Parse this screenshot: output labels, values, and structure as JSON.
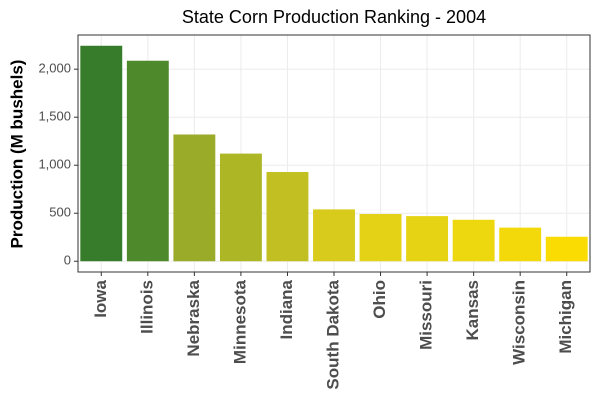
{
  "chart_data": {
    "type": "bar",
    "title": "State Corn Production Ranking - 2004",
    "y_label": "Production (M bushels)",
    "categories": [
      "Iowa",
      "Illinois",
      "Nebraska",
      "Minnesota",
      "Indiana",
      "South Dakota",
      "Ohio",
      "Missouri",
      "Kansas",
      "Wisconsin",
      "Michigan"
    ],
    "values": [
      2244,
      2088,
      1320,
      1121,
      929,
      540,
      492,
      470,
      432,
      350,
      255
    ],
    "colors": [
      "#367c2b",
      "#4e8a2c",
      "#9aab2a",
      "#adb625",
      "#c2bf22",
      "#d9cb1c",
      "#e4d216",
      "#e6d313",
      "#edd70f",
      "#f3d909",
      "#fbdc02"
    ],
    "ylim": [
      -112,
      2356
    ],
    "yticks": [
      0,
      500,
      {
        "value": 1000,
        "label": "1,000"
      },
      {
        "value": 1500,
        "label": "1,500"
      },
      {
        "value": 2000,
        "label": "2,000"
      }
    ],
    "grid": true
  }
}
